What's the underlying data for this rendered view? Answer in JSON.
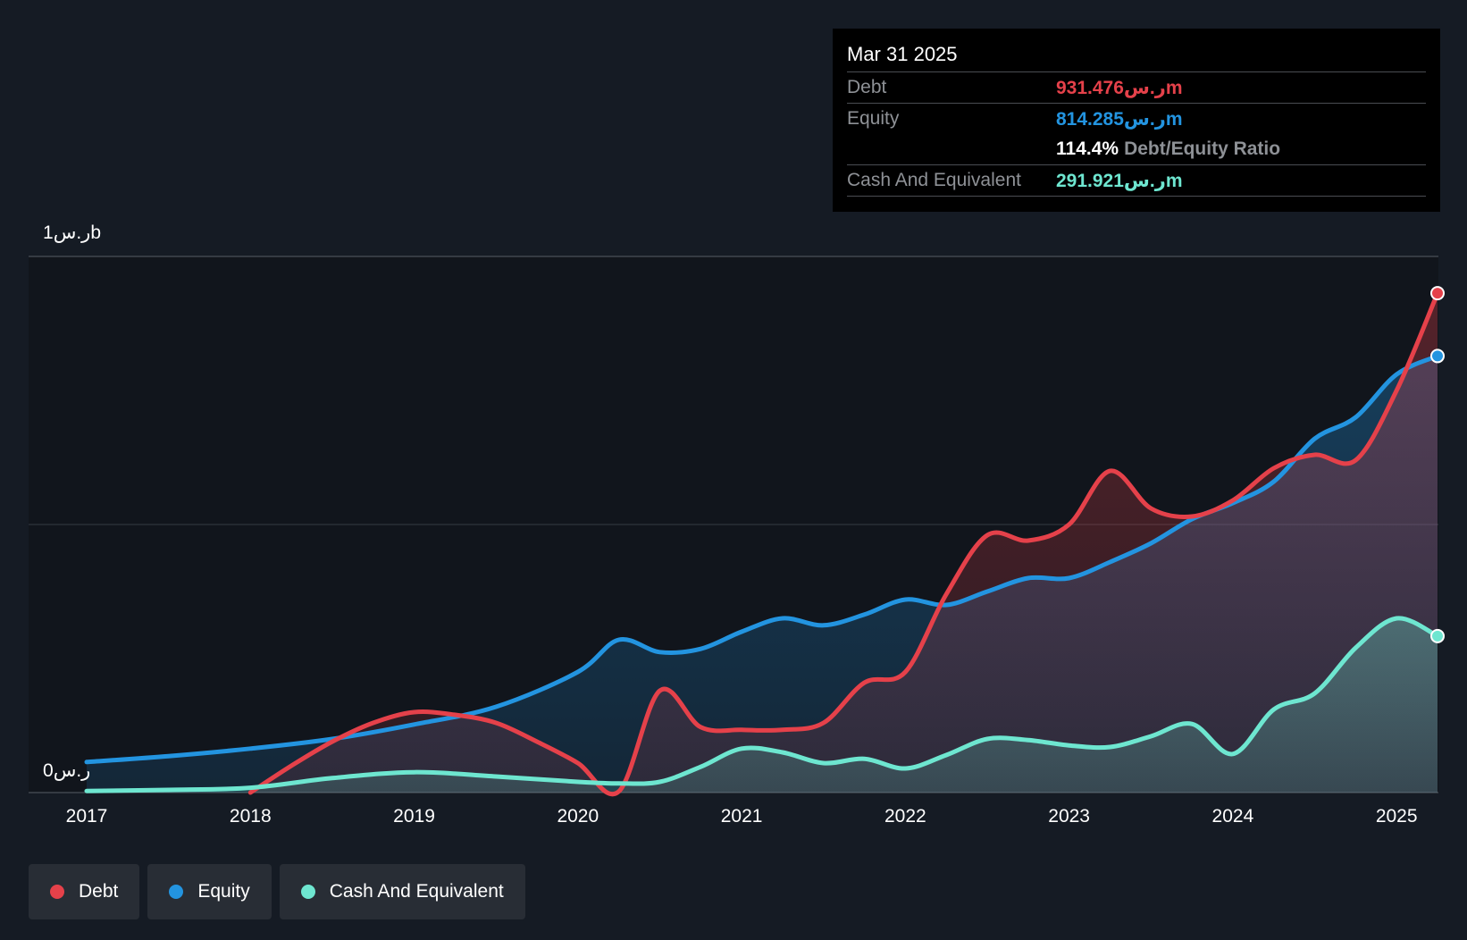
{
  "colors": {
    "debt": "#e5414a",
    "equity": "#2394e0",
    "cash": "#6ee6d0",
    "background": "#151b24",
    "tooltip_bg": "#000000"
  },
  "tooltip": {
    "date": "Mar 31 2025",
    "debt_label": "Debt",
    "debt_value": "931.476ر.سm",
    "equity_label": "Equity",
    "equity_value": "814.285ر.سm",
    "ratio_value": "114.4%",
    "ratio_label": "Debt/Equity Ratio",
    "cash_label": "Cash And Equivalent",
    "cash_value": "291.921ر.سm"
  },
  "y_axis": {
    "top_label": "1ر.سb",
    "bottom_label": "0ر.س"
  },
  "legend": [
    {
      "label": "Debt",
      "color": "#e5414a"
    },
    {
      "label": "Equity",
      "color": "#2394e0"
    },
    {
      "label": "Cash And Equivalent",
      "color": "#6ee6d0"
    }
  ],
  "chart_data": {
    "type": "area",
    "title": "",
    "xlabel": "",
    "ylabel": "",
    "unit": "ر.س m",
    "ylim": [
      0,
      1000
    ],
    "xlim": [
      2017.0,
      2025.25
    ],
    "x_ticks": [
      "2017",
      "2018",
      "2019",
      "2020",
      "2021",
      "2022",
      "2023",
      "2024",
      "2025"
    ],
    "grid": true,
    "legend_position": "bottom-left",
    "series": [
      {
        "name": "Debt",
        "color": "#e5414a",
        "points": [
          [
            2018.0,
            0
          ],
          [
            2018.25,
            50
          ],
          [
            2018.5,
            95
          ],
          [
            2018.75,
            130
          ],
          [
            2019.0,
            150
          ],
          [
            2019.25,
            145
          ],
          [
            2019.5,
            130
          ],
          [
            2019.75,
            95
          ],
          [
            2020.0,
            55
          ],
          [
            2020.25,
            2
          ],
          [
            2020.5,
            190
          ],
          [
            2020.75,
            122
          ],
          [
            2021.0,
            117
          ],
          [
            2021.25,
            117
          ],
          [
            2021.5,
            130
          ],
          [
            2021.75,
            205
          ],
          [
            2022.0,
            225
          ],
          [
            2022.25,
            370
          ],
          [
            2022.5,
            480
          ],
          [
            2022.75,
            470
          ],
          [
            2023.0,
            500
          ],
          [
            2023.25,
            600
          ],
          [
            2023.5,
            530
          ],
          [
            2023.75,
            515
          ],
          [
            2024.0,
            545
          ],
          [
            2024.25,
            605
          ],
          [
            2024.5,
            630
          ],
          [
            2024.75,
            620
          ],
          [
            2025.0,
            750
          ],
          [
            2025.25,
            931.476
          ]
        ]
      },
      {
        "name": "Equity",
        "color": "#2394e0",
        "points": [
          [
            2017.0,
            57
          ],
          [
            2017.5,
            68
          ],
          [
            2018.0,
            82
          ],
          [
            2018.5,
            100
          ],
          [
            2019.0,
            127
          ],
          [
            2019.5,
            160
          ],
          [
            2020.0,
            225
          ],
          [
            2020.25,
            285
          ],
          [
            2020.5,
            262
          ],
          [
            2020.75,
            268
          ],
          [
            2021.0,
            300
          ],
          [
            2021.25,
            325
          ],
          [
            2021.5,
            312
          ],
          [
            2021.75,
            332
          ],
          [
            2022.0,
            360
          ],
          [
            2022.25,
            350
          ],
          [
            2022.5,
            375
          ],
          [
            2022.75,
            400
          ],
          [
            2023.0,
            400
          ],
          [
            2023.25,
            430
          ],
          [
            2023.5,
            465
          ],
          [
            2023.75,
            510
          ],
          [
            2024.0,
            540
          ],
          [
            2024.25,
            580
          ],
          [
            2024.5,
            660
          ],
          [
            2024.75,
            700
          ],
          [
            2025.0,
            780
          ],
          [
            2025.25,
            814.285
          ]
        ]
      },
      {
        "name": "Cash And Equivalent",
        "color": "#6ee6d0",
        "points": [
          [
            2017.0,
            3
          ],
          [
            2017.5,
            5
          ],
          [
            2018.0,
            9
          ],
          [
            2018.5,
            27
          ],
          [
            2019.0,
            38
          ],
          [
            2019.5,
            30
          ],
          [
            2020.0,
            20
          ],
          [
            2020.25,
            17
          ],
          [
            2020.5,
            20
          ],
          [
            2020.75,
            48
          ],
          [
            2021.0,
            82
          ],
          [
            2021.25,
            75
          ],
          [
            2021.5,
            55
          ],
          [
            2021.75,
            63
          ],
          [
            2022.0,
            45
          ],
          [
            2022.25,
            70
          ],
          [
            2022.5,
            100
          ],
          [
            2022.75,
            98
          ],
          [
            2023.0,
            88
          ],
          [
            2023.25,
            85
          ],
          [
            2023.5,
            105
          ],
          [
            2023.75,
            128
          ],
          [
            2024.0,
            72
          ],
          [
            2024.25,
            155
          ],
          [
            2024.5,
            185
          ],
          [
            2024.75,
            270
          ],
          [
            2025.0,
            325
          ],
          [
            2025.25,
            291.921
          ]
        ]
      }
    ]
  }
}
